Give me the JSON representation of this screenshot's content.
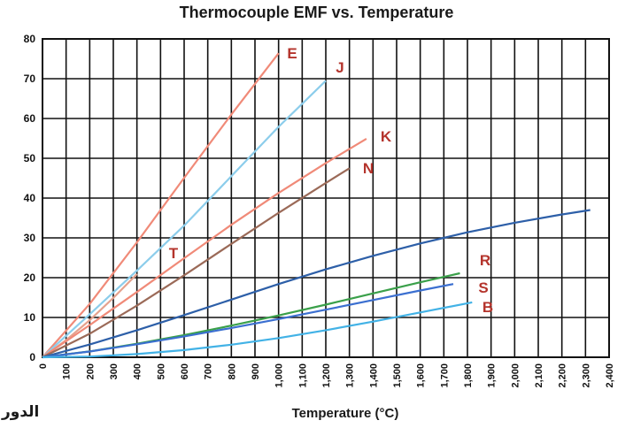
{
  "chart_data": {
    "type": "line",
    "title": "Thermocouple EMF vs. Temperature",
    "xlabel": "Temperature (°C)",
    "ylabel": "",
    "xlim": [
      0,
      2400
    ],
    "ylim": [
      0,
      80
    ],
    "x_ticks": [
      "0",
      "100",
      "200",
      "300",
      "400",
      "500",
      "600",
      "700",
      "800",
      "900",
      "1,000",
      "1,100",
      "1,200",
      "1,300",
      "1,400",
      "1,500",
      "1,600",
      "1,700",
      "1,800",
      "1,900",
      "2,000",
      "2,100",
      "2,200",
      "2,300",
      "2,400"
    ],
    "y_ticks": [
      "0",
      "10",
      "20",
      "30",
      "40",
      "50",
      "60",
      "70",
      "80"
    ],
    "grid": true,
    "series": [
      {
        "name": "E",
        "color": "#f08a78",
        "x": [
          0,
          200,
          400,
          600,
          800,
          1000
        ],
        "y": [
          0,
          13.4,
          28.9,
          45.1,
          61.0,
          76.4
        ]
      },
      {
        "name": "J",
        "color": "#8ccdeb",
        "x": [
          0,
          200,
          400,
          600,
          800,
          1000,
          1200
        ],
        "y": [
          0,
          10.8,
          21.8,
          33.1,
          45.5,
          57.9,
          69.5
        ]
      },
      {
        "name": "T",
        "color": "#e5a28e",
        "x": [
          0,
          100,
          200,
          300,
          400
        ],
        "y": [
          0,
          4.3,
          9.3,
          14.9,
          20.9
        ]
      },
      {
        "name": "K",
        "color": "#f08a78",
        "x": [
          0,
          200,
          400,
          600,
          800,
          1000,
          1200,
          1372
        ],
        "y": [
          0,
          8.1,
          16.4,
          24.9,
          33.3,
          41.3,
          48.8,
          54.9
        ]
      },
      {
        "name": "N",
        "color": "#9b6a58",
        "x": [
          0,
          200,
          400,
          600,
          800,
          1000,
          1200,
          1300
        ],
        "y": [
          0,
          5.9,
          12.97,
          20.6,
          28.5,
          36.3,
          43.8,
          47.5
        ]
      },
      {
        "name": "",
        "color": "#2d5fa8",
        "x": [
          0,
          200,
          400,
          600,
          800,
          1000,
          1200,
          1400,
          1600,
          1800,
          2000,
          2200,
          2320
        ],
        "y": [
          0,
          3.2,
          6.8,
          10.6,
          14.5,
          18.4,
          22.1,
          25.5,
          28.6,
          31.4,
          33.8,
          35.9,
          37.0
        ]
      },
      {
        "name": "R",
        "color": "#3aa04a",
        "x": [
          0,
          200,
          400,
          600,
          800,
          1000,
          1200,
          1400,
          1600,
          1768
        ],
        "y": [
          0,
          1.47,
          3.41,
          5.58,
          7.95,
          10.51,
          13.23,
          16.04,
          18.84,
          21.1
        ]
      },
      {
        "name": "S",
        "color": "#3b6fd0",
        "x": [
          0,
          200,
          400,
          600,
          800,
          1000,
          1200,
          1400,
          1600,
          1740
        ],
        "y": [
          0,
          1.44,
          3.26,
          5.24,
          7.35,
          9.59,
          11.95,
          14.37,
          16.78,
          18.4
        ]
      },
      {
        "name": "B",
        "color": "#42b2e6",
        "x": [
          0,
          200,
          400,
          600,
          800,
          1000,
          1200,
          1400,
          1600,
          1820
        ],
        "y": [
          0,
          0.18,
          0.79,
          1.79,
          3.15,
          4.83,
          6.79,
          8.96,
          11.26,
          13.8
        ]
      }
    ]
  },
  "corner_text": "الدور"
}
